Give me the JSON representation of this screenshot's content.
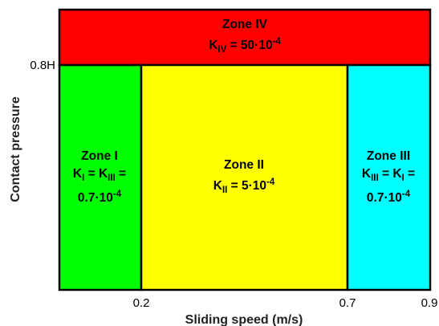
{
  "axes": {
    "xlabel": "Sliding speed (m/s)",
    "ylabel": "Contact pressure",
    "x_ticks": [
      "0.2",
      "0.7",
      "0.9"
    ],
    "y_ticks": [
      "0.8H"
    ]
  },
  "zones": {
    "zone1": {
      "title": "Zone I",
      "k_line": {
        "k1": "K",
        "k1_sub": "I",
        "eq1": " = ",
        "k2": "K",
        "k2_sub": "III",
        "eq2": " ="
      },
      "value": {
        "base": "0.7·10",
        "exp": "-4"
      },
      "color": "#00ff00"
    },
    "zone2": {
      "title": "Zone II",
      "k_line": {
        "k": "K",
        "k_sub": "II",
        "eq_base": " = 5·10",
        "exp": "-4"
      },
      "color": "#ffff00"
    },
    "zone3": {
      "title": "Zone III",
      "k_line": {
        "k1": "K",
        "k1_sub": "III",
        "eq1": " = ",
        "k2": "K",
        "k2_sub": "I",
        "eq2": " ="
      },
      "value": {
        "base": "0.7·10",
        "exp": "-4"
      },
      "color": "#00ffff"
    },
    "zone4": {
      "title": "Zone IV",
      "k_line": {
        "k": "K",
        "k_sub": "IV",
        "eq_base": " = 50·10",
        "exp": "-4"
      },
      "color": "#ff0000"
    }
  }
}
